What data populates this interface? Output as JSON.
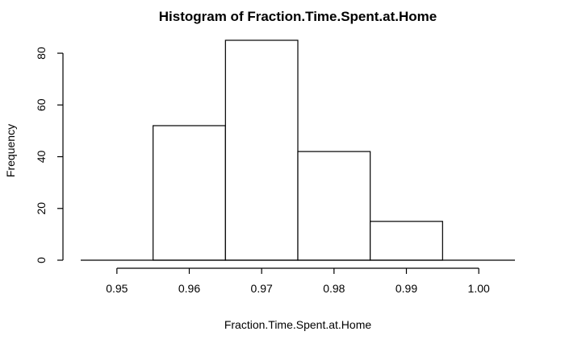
{
  "chart_data": {
    "type": "bar",
    "title": "Histogram of Fraction.Time.Spent.at.Home",
    "xlabel": "Fraction.Time.Spent.at.Home",
    "ylabel": "Frequency",
    "bins": [
      {
        "x0": 0.945,
        "x1": 0.955,
        "count": 0
      },
      {
        "x0": 0.955,
        "x1": 0.965,
        "count": 52
      },
      {
        "x0": 0.965,
        "x1": 0.975,
        "count": 85
      },
      {
        "x0": 0.975,
        "x1": 0.985,
        "count": 42
      },
      {
        "x0": 0.985,
        "x1": 0.995,
        "count": 15
      },
      {
        "x0": 0.995,
        "x1": 1.005,
        "count": 0
      }
    ],
    "xlim": [
      0.945,
      1.005
    ],
    "ylim": [
      0,
      85
    ],
    "x_ticks": [
      "0.95",
      "0.96",
      "0.97",
      "0.98",
      "0.99",
      "1.00"
    ],
    "y_ticks": [
      "0",
      "20",
      "40",
      "60",
      "80"
    ],
    "grid": false,
    "legend": "none"
  }
}
